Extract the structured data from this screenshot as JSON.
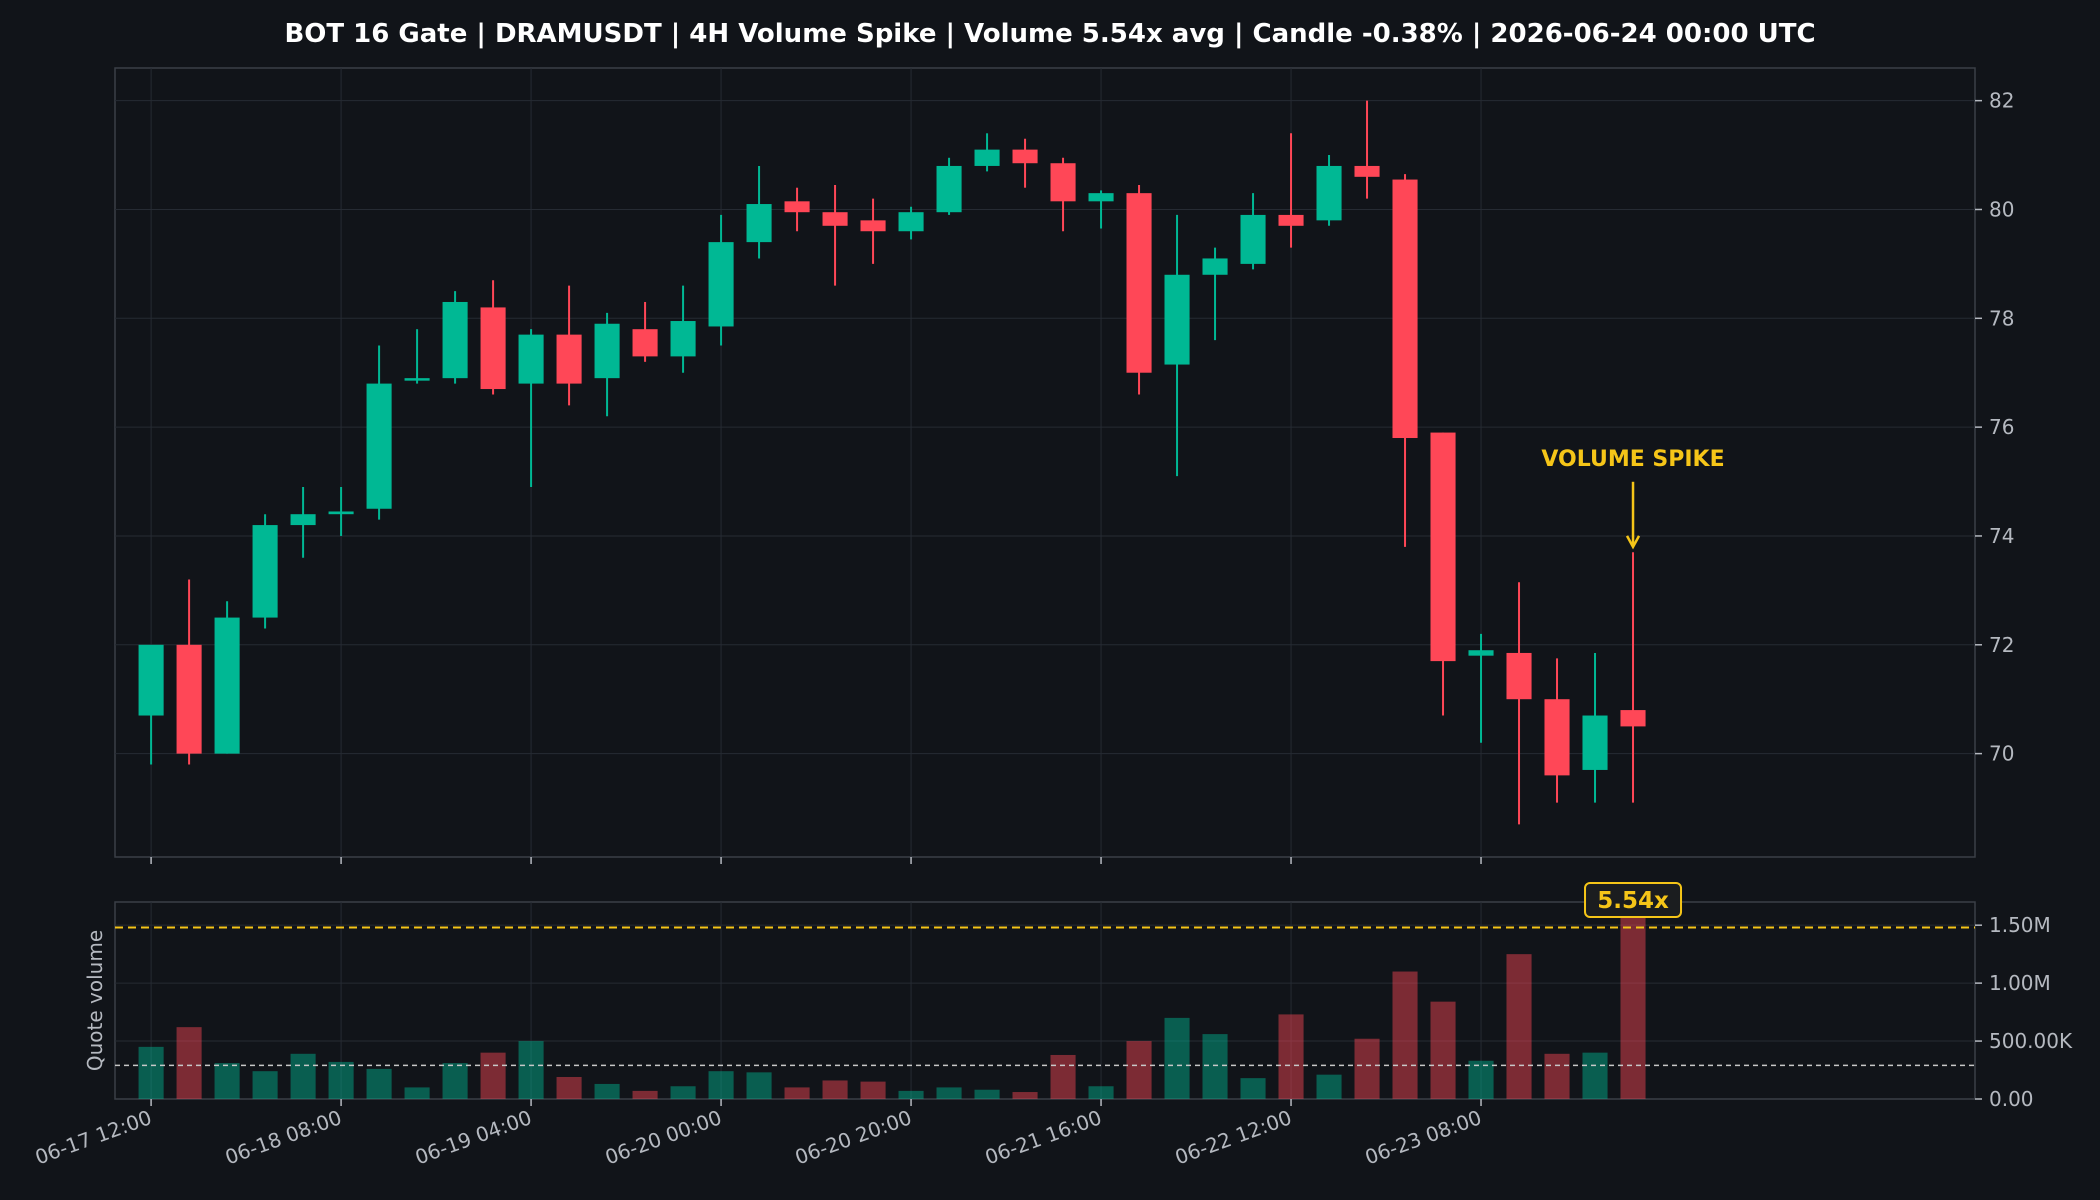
{
  "title": "BOT 16 Gate | DRAMUSDT | 4H Volume Spike | Volume 5.54x avg | Candle -0.38% | 2026-06-24 00:00 UTC",
  "colors": {
    "background": "#111419",
    "panel_border": "#3a3f47",
    "grid": "#262b33",
    "text": "#b5b9c0",
    "title": "#ffffff",
    "up": "#00b894",
    "down": "#ff4757",
    "accent": "#f5c518",
    "avg_line": "#c8c8c8"
  },
  "chart_data": [
    {
      "type": "candlestick",
      "price_axis_side": "right",
      "ylim": [
        68.1,
        82.6
      ],
      "yticks": [
        "70",
        "72",
        "74",
        "76",
        "78",
        "80",
        "82"
      ],
      "xlim": [
        -0.95,
        48.0
      ],
      "xtick_positions": [
        0,
        5,
        10,
        15,
        20,
        25,
        30,
        35
      ],
      "xtick_labels": [
        "06-17 12:00",
        "06-18 08:00",
        "06-19 04:00",
        "06-20 00:00",
        "06-20 20:00",
        "06-21 16:00",
        "06-22 12:00",
        "06-23 08:00"
      ],
      "grid": true,
      "annotation": {
        "text": "VOLUME SPIKE",
        "candle_index": 39,
        "arrow_tip_price": 73.8,
        "text_price": 75.4
      },
      "candles": [
        {
          "o": 70.7,
          "h": 71.9,
          "l": 69.8,
          "c": 72.0
        },
        {
          "o": 72.0,
          "h": 73.2,
          "l": 69.8,
          "c": 70.0
        },
        {
          "o": 70.0,
          "h": 72.8,
          "l": 70.0,
          "c": 72.5
        },
        {
          "o": 72.5,
          "h": 74.4,
          "l": 72.3,
          "c": 74.2
        },
        {
          "o": 74.2,
          "h": 74.9,
          "l": 73.6,
          "c": 74.4
        },
        {
          "o": 74.4,
          "h": 74.9,
          "l": 74.0,
          "c": 74.45
        },
        {
          "o": 74.5,
          "h": 77.5,
          "l": 74.3,
          "c": 76.8
        },
        {
          "o": 76.9,
          "h": 77.8,
          "l": 76.8,
          "c": 76.9
        },
        {
          "o": 76.9,
          "h": 78.5,
          "l": 76.8,
          "c": 78.3
        },
        {
          "o": 78.2,
          "h": 78.7,
          "l": 76.6,
          "c": 76.7
        },
        {
          "o": 76.8,
          "h": 77.8,
          "l": 74.9,
          "c": 77.7
        },
        {
          "o": 77.7,
          "h": 78.6,
          "l": 76.4,
          "c": 76.8
        },
        {
          "o": 76.9,
          "h": 78.1,
          "l": 76.2,
          "c": 77.9
        },
        {
          "o": 77.8,
          "h": 78.3,
          "l": 77.2,
          "c": 77.3
        },
        {
          "o": 77.3,
          "h": 78.6,
          "l": 77.0,
          "c": 77.95
        },
        {
          "o": 77.85,
          "h": 79.9,
          "l": 77.5,
          "c": 79.4
        },
        {
          "o": 79.4,
          "h": 80.8,
          "l": 79.1,
          "c": 80.1
        },
        {
          "o": 80.15,
          "h": 80.4,
          "l": 79.6,
          "c": 79.95
        },
        {
          "o": 79.95,
          "h": 80.45,
          "l": 78.6,
          "c": 79.7
        },
        {
          "o": 79.8,
          "h": 80.2,
          "l": 79.0,
          "c": 79.6
        },
        {
          "o": 79.6,
          "h": 80.05,
          "l": 79.45,
          "c": 79.95
        },
        {
          "o": 79.95,
          "h": 80.95,
          "l": 79.9,
          "c": 80.8
        },
        {
          "o": 80.8,
          "h": 81.4,
          "l": 80.7,
          "c": 81.1
        },
        {
          "o": 81.1,
          "h": 81.3,
          "l": 80.4,
          "c": 80.85
        },
        {
          "o": 80.85,
          "h": 80.95,
          "l": 79.6,
          "c": 80.15
        },
        {
          "o": 80.15,
          "h": 80.35,
          "l": 79.65,
          "c": 80.3
        },
        {
          "o": 80.3,
          "h": 80.45,
          "l": 76.6,
          "c": 77.0
        },
        {
          "o": 77.15,
          "h": 79.9,
          "l": 75.1,
          "c": 78.8
        },
        {
          "o": 78.8,
          "h": 79.3,
          "l": 77.6,
          "c": 79.1
        },
        {
          "o": 79.0,
          "h": 80.3,
          "l": 78.9,
          "c": 79.9
        },
        {
          "o": 79.9,
          "h": 81.4,
          "l": 79.3,
          "c": 79.7
        },
        {
          "o": 79.8,
          "h": 81.0,
          "l": 79.7,
          "c": 80.8
        },
        {
          "o": 80.8,
          "h": 82.0,
          "l": 80.2,
          "c": 80.6
        },
        {
          "o": 80.55,
          "h": 80.65,
          "l": 73.8,
          "c": 75.8
        },
        {
          "o": 75.9,
          "h": 75.9,
          "l": 70.7,
          "c": 71.7
        },
        {
          "o": 71.8,
          "h": 72.2,
          "l": 70.2,
          "c": 71.9
        },
        {
          "o": 71.85,
          "h": 73.15,
          "l": 68.7,
          "c": 71.0
        },
        {
          "o": 71.0,
          "h": 71.75,
          "l": 69.1,
          "c": 69.6
        },
        {
          "o": 69.7,
          "h": 71.85,
          "l": 69.1,
          "c": 70.7
        },
        {
          "o": 70.8,
          "h": 73.7,
          "l": 69.1,
          "c": 70.5
        }
      ]
    },
    {
      "type": "bar",
      "ylabel": "Quote volume",
      "ylim": [
        0,
        1700000
      ],
      "yticks": [
        0,
        500000,
        1000000,
        1500000
      ],
      "ytick_labels": [
        "0.00",
        "500.00K",
        "1.00M",
        "1.50M"
      ],
      "average": 290000,
      "threshold": 1480000,
      "badge": {
        "text": "5.54x",
        "bar_index": 39
      },
      "values": [
        450000,
        620000,
        310000,
        240000,
        390000,
        320000,
        260000,
        100000,
        310000,
        400000,
        500000,
        190000,
        130000,
        70000,
        110000,
        240000,
        230000,
        100000,
        160000,
        150000,
        70000,
        100000,
        80000,
        60000,
        380000,
        110000,
        500000,
        700000,
        560000,
        180000,
        730000,
        210000,
        520000,
        1100000,
        840000,
        330000,
        1250000,
        390000,
        400000,
        1610000
      ]
    }
  ]
}
